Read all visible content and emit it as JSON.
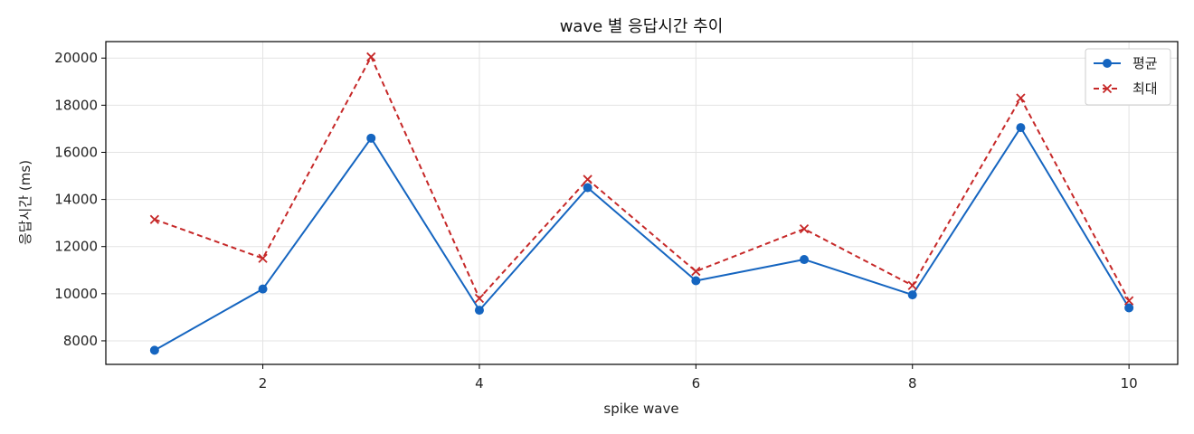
{
  "chart_data": {
    "type": "line",
    "title": "wave 별 응답시간 추이",
    "xlabel": "spike wave",
    "ylabel": "응답시간 (ms)",
    "x": [
      1,
      2,
      3,
      4,
      5,
      6,
      7,
      8,
      9,
      10
    ],
    "x_ticks": [
      2,
      4,
      6,
      8,
      10
    ],
    "y_ticks": [
      8000,
      10000,
      12000,
      14000,
      16000,
      18000,
      20000
    ],
    "xlim": [
      0.55,
      10.45
    ],
    "ylim": [
      7000,
      20700
    ],
    "grid": true,
    "legend_position": "top-right",
    "series": [
      {
        "name": "평균",
        "values": [
          7600,
          10200,
          16600,
          9300,
          14500,
          10550,
          11450,
          9950,
          17050,
          9400
        ],
        "color": "#1565c0",
        "line_style": "solid",
        "marker": "circle"
      },
      {
        "name": "최대",
        "values": [
          13150,
          11500,
          20050,
          9800,
          14850,
          10950,
          12750,
          10350,
          18300,
          9700
        ],
        "color": "#c62828",
        "line_style": "dashed",
        "marker": "x"
      }
    ]
  }
}
